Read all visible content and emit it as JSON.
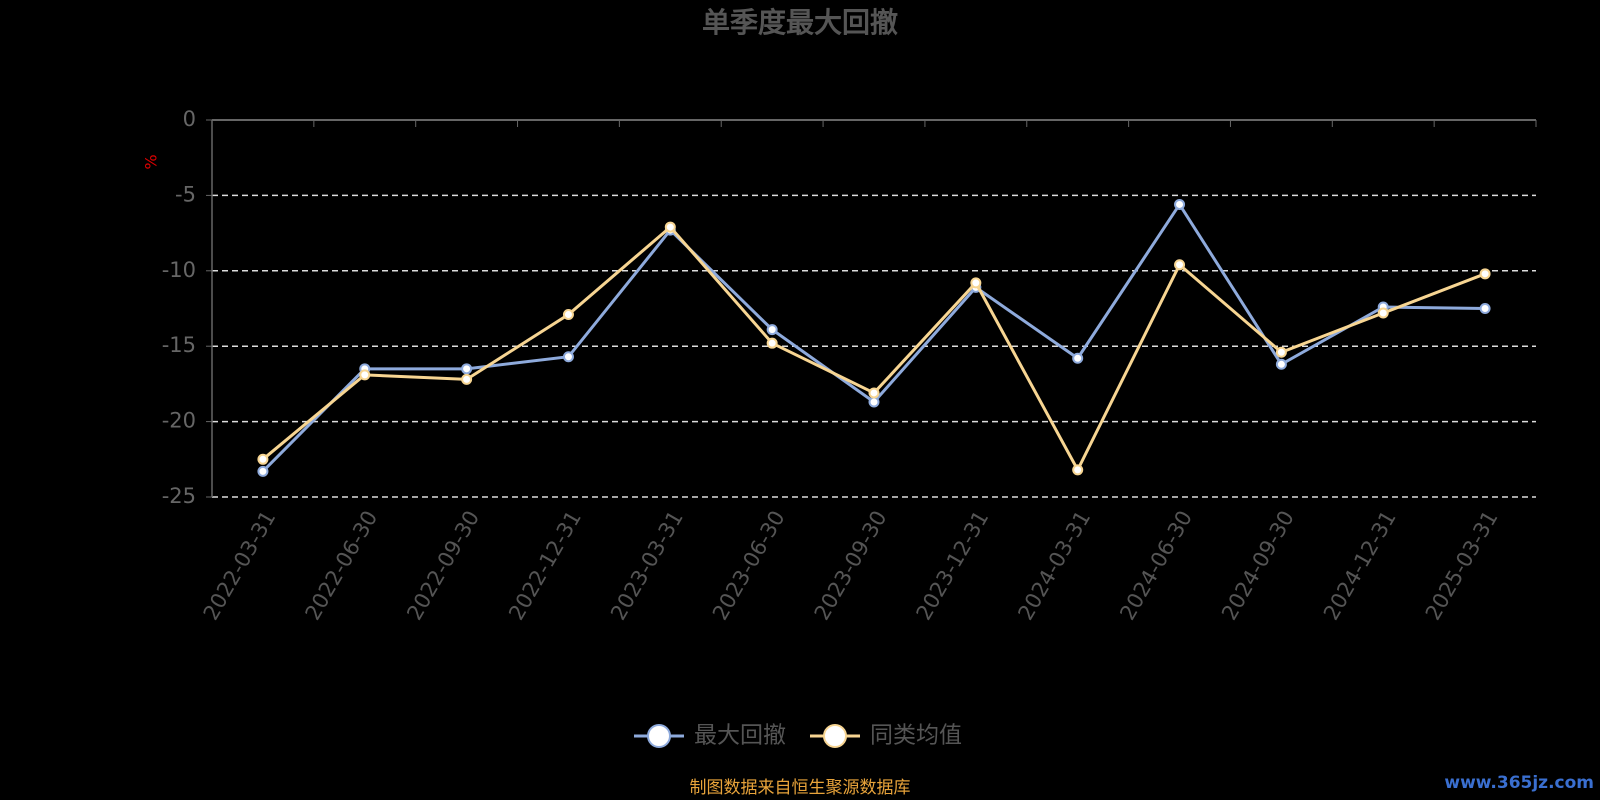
{
  "chart_data": {
    "type": "line",
    "title": "单季度最大回撤",
    "y_label": "%",
    "categories": [
      "2022-03-31",
      "2022-06-30",
      "2022-09-30",
      "2022-12-31",
      "2023-03-31",
      "2023-06-30",
      "2023-09-30",
      "2023-12-31",
      "2024-03-31",
      "2024-06-30",
      "2024-09-30",
      "2024-12-31",
      "2025-03-31"
    ],
    "series": [
      {
        "name": "最大回撤",
        "color": "#8eaadc",
        "values": [
          -23.3,
          -16.5,
          -16.5,
          -15.7,
          -7.3,
          -13.9,
          -18.7,
          -11.1,
          -15.8,
          -5.6,
          -16.2,
          -12.4,
          -12.5
        ]
      },
      {
        "name": "同类均值",
        "color": "#f7d592",
        "values": [
          -22.5,
          -16.9,
          -17.2,
          -12.9,
          -7.1,
          -14.8,
          -18.1,
          -10.8,
          -23.2,
          -9.6,
          -15.4,
          -12.8,
          -10.2
        ]
      }
    ],
    "ylim": [
      -25,
      0
    ],
    "yticks": [
      0,
      -5,
      -10,
      -15,
      -20,
      -25
    ],
    "grid": true,
    "source": "制图数据来自恒生聚源数据库",
    "watermark": "www.365jz.com"
  }
}
